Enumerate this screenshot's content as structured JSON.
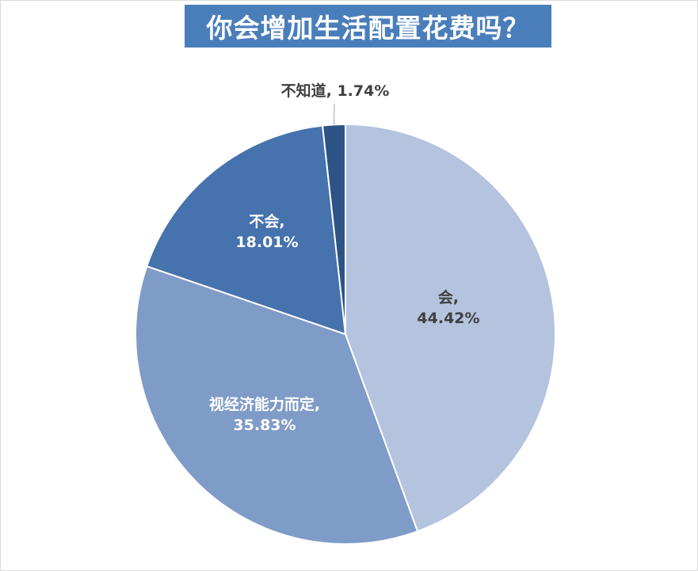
{
  "chart_data": {
    "type": "pie",
    "title": "你会增加生活配置花费吗？",
    "slices": [
      {
        "name": "会",
        "value": 44.42,
        "label_line1": "会,",
        "label_line2": "44.42%",
        "color": "#b4c3de",
        "text_color": "#404040"
      },
      {
        "name": "视经济能力而定",
        "value": 35.83,
        "label_line1": "视经济能力而定,",
        "label_line2": "35.83%",
        "color": "#7f9bc8",
        "text_color": "#ffffff"
      },
      {
        "name": "不会",
        "value": 18.01,
        "label_line1": "不会,",
        "label_line2": "18.01%",
        "color": "#4672ae",
        "text_color": "#ffffff"
      },
      {
        "name": "不知道",
        "value": 1.74,
        "label_line1": "不知道, 1.74%",
        "label_line2": "",
        "color": "#2e5486",
        "text_color": "#404040"
      }
    ],
    "legend": "none",
    "start_angle_deg": 0,
    "direction": "clockwise"
  }
}
